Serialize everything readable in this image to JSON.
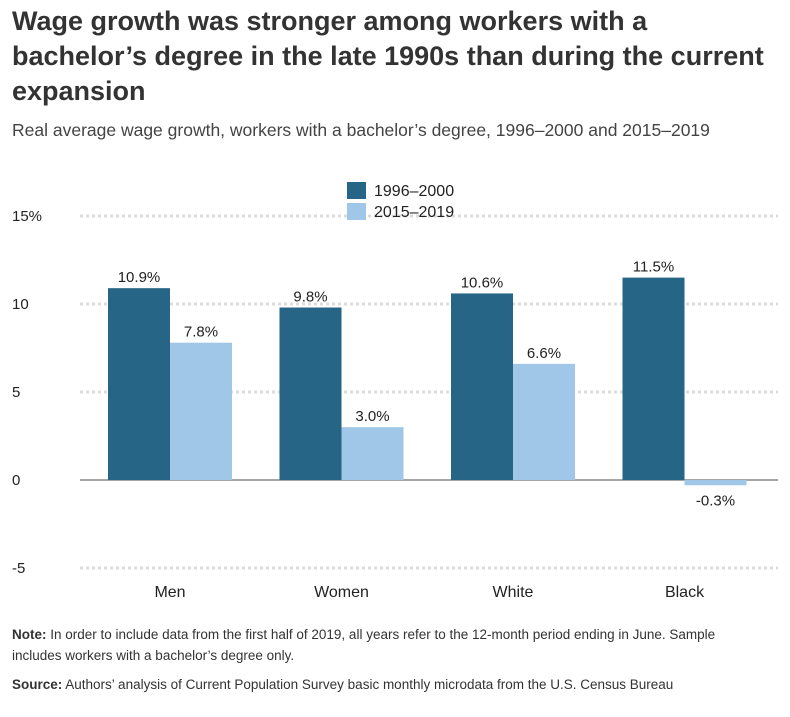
{
  "title": "Wage growth was stronger among workers with a bachelor’s degree in the late 1990s than during the current expansion",
  "subtitle": "Real average wage growth, workers with a bachelor’s degree, 1996–2000 and 2015–2019",
  "note_label": "Note:",
  "note_text": "In order to include data from the first half of 2019, all years refer to the 12-month period ending in June. Sample includes workers with a bachelor’s degree only.",
  "source_label": "Source:",
  "source_text": "Authors’ analysis of Current Population Survey basic monthly microdata from the U.S. Census Bureau",
  "colors": {
    "series1": "#266586",
    "series2": "#a0c7e8",
    "grid": "#dcdcdc",
    "zero": "#888888"
  },
  "chart_data": {
    "type": "bar",
    "categories": [
      "Men",
      "Women",
      "White",
      "Black"
    ],
    "series": [
      {
        "name": "1996–2000",
        "values": [
          10.9,
          9.8,
          10.6,
          11.5
        ],
        "labels": [
          "10.9%",
          "9.8%",
          "10.6%",
          "11.5%"
        ]
      },
      {
        "name": "2015–2019",
        "values": [
          7.8,
          3.0,
          6.6,
          -0.3
        ],
        "labels": [
          "7.8%",
          "3.0%",
          "6.6%",
          "-0.3%"
        ]
      }
    ],
    "yticks": [
      15,
      10,
      5,
      0,
      -5
    ],
    "ytick_labels": [
      "15%",
      "10",
      "5",
      "0",
      "-5"
    ],
    "ylim": [
      -5,
      15
    ],
    "grid": true,
    "legend_position": "top-center"
  }
}
